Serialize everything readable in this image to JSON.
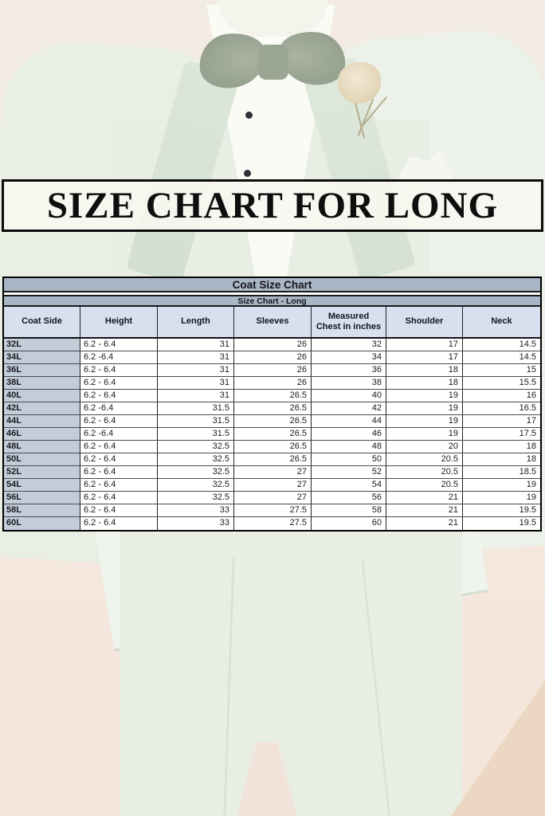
{
  "banner": {
    "text": "SIZE CHART FOR LONG"
  },
  "chart_data": {
    "type": "table",
    "title": "Coat Size Chart",
    "subtitle": "Size Chart - Long",
    "columns": [
      "Coat Side",
      "Height",
      "Length",
      "Sleeves",
      "Measured Chest in inches",
      "Shoulder",
      "Neck"
    ],
    "rows": [
      [
        "32L",
        "6.2 - 6.4",
        "31",
        "26",
        "32",
        "17",
        "14.5"
      ],
      [
        "34L",
        "6.2 -6.4",
        "31",
        "26",
        "34",
        "17",
        "14.5"
      ],
      [
        "36L",
        "6.2 - 6.4",
        "31",
        "26",
        "36",
        "18",
        "15"
      ],
      [
        "38L",
        "6.2 - 6.4",
        "31",
        "26",
        "38",
        "18",
        "15.5"
      ],
      [
        "40L",
        "6.2 - 6.4",
        "31",
        "26.5",
        "40",
        "19",
        "16"
      ],
      [
        "42L",
        "6.2 -6.4",
        "31.5",
        "26.5",
        "42",
        "19",
        "16.5"
      ],
      [
        "44L",
        "6.2 - 6.4",
        "31.5",
        "26.5",
        "44",
        "19",
        "17"
      ],
      [
        "46L",
        "6.2 -6.4",
        "31.5",
        "26.5",
        "46",
        "19",
        "17.5"
      ],
      [
        "48L",
        "6.2 - 6.4",
        "32.5",
        "26.5",
        "48",
        "20",
        "18"
      ],
      [
        "50L",
        "6.2 - 6.4",
        "32.5",
        "26.5",
        "50",
        "20.5",
        "18"
      ],
      [
        "52L",
        "6.2 - 6.4",
        "32.5",
        "27",
        "52",
        "20.5",
        "18.5"
      ],
      [
        "54L",
        "6.2 - 6.4",
        "32.5",
        "27",
        "54",
        "20.5",
        "19"
      ],
      [
        "56L",
        "6.2 - 6.4",
        "32.5",
        "27",
        "56",
        "21",
        "19"
      ],
      [
        "58L",
        "6.2 - 6.4",
        "33",
        "27.5",
        "58",
        "21",
        "19.5"
      ],
      [
        "60L",
        "6.2 - 6.4",
        "33",
        "27.5",
        "60",
        "21",
        "19.5"
      ]
    ]
  },
  "colors": {
    "banner_border": "#0b0b0b",
    "banner_bg": "#f7f6f0",
    "table_band_bg": "#a9b6c6",
    "table_header_bg": "#d6e0ef",
    "table_first_col_bg": "#c3cdda",
    "suit_mint": "#e9efe5",
    "bowtie_sage": "#a3ac9b",
    "background_cream": "#f2ece2",
    "background_pink": "#f4e6dc"
  }
}
